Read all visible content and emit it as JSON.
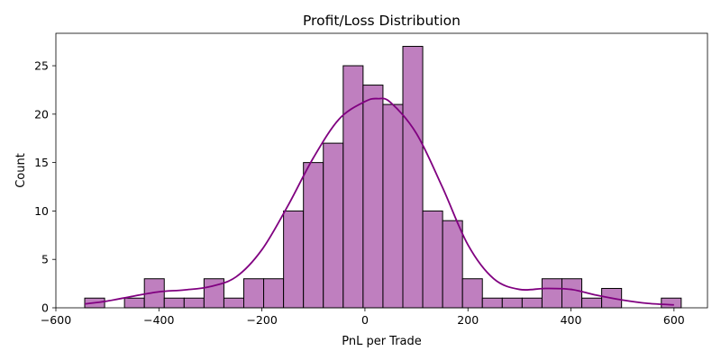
{
  "chart_data": {
    "type": "bar",
    "title": "Profit/Loss Distribution",
    "xlabel": "PnL per Trade",
    "ylabel": "Count",
    "xlim": [
      -600,
      665
    ],
    "ylim": [
      0,
      28.35
    ],
    "xticks": [
      -600,
      -400,
      -200,
      0,
      200,
      400,
      600
    ],
    "xtick_labels": [
      "−600",
      "−400",
      "−200",
      "0",
      "200",
      "400",
      "600"
    ],
    "yticks": [
      0,
      5,
      10,
      15,
      20,
      25
    ],
    "yticks_labels": [
      "0",
      "5",
      "10",
      "15",
      "20",
      "25"
    ],
    "grid": false,
    "legend": "none",
    "bin_edges": [
      -544,
      -505.4,
      -466.8,
      -428.2,
      -389.6,
      -351,
      -312.4,
      -273.8,
      -235.2,
      -196.6,
      -158,
      -119.4,
      -80.8,
      -42.2,
      -3.6,
      35,
      73.6,
      112.2,
      150.8,
      189.4,
      228,
      266.6,
      305.2,
      343.8,
      382.4,
      421,
      459.6,
      498.2,
      536.8,
      575.4,
      614
    ],
    "counts": [
      1,
      0,
      1,
      3,
      1,
      1,
      3,
      1,
      3,
      3,
      10,
      15,
      17,
      25,
      23,
      21,
      27,
      10,
      9,
      3,
      1,
      1,
      1,
      3,
      3,
      1,
      2,
      0,
      0,
      1
    ],
    "kde_x": [
      -544,
      -500,
      -450,
      -400,
      -350,
      -300,
      -250,
      -200,
      -150,
      -100,
      -50,
      0,
      25,
      50,
      100,
      150,
      200,
      250,
      300,
      350,
      400,
      450,
      500,
      550,
      600
    ],
    "kde_y": [
      0.4,
      0.7,
      1.2,
      1.65,
      1.85,
      2.2,
      3.2,
      6.0,
      10.5,
      15.5,
      19.5,
      21.3,
      21.6,
      21.2,
      18.0,
      12.5,
      6.5,
      3.0,
      1.9,
      2.0,
      1.9,
      1.3,
      0.8,
      0.45,
      0.3
    ],
    "bar_color": "#bf7fbf",
    "edge_color": "#000000",
    "kde_color": "#800080"
  }
}
